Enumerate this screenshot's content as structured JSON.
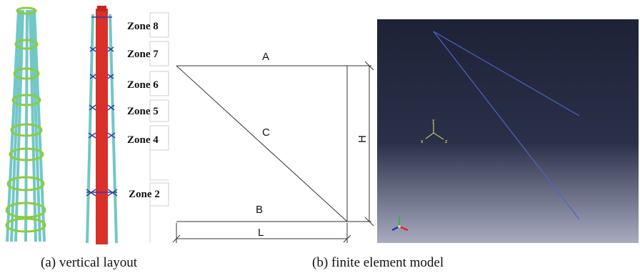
{
  "zones": [
    "Zone 8",
    "Zone 7",
    "Zone 6",
    "Zone 5",
    "Zone 4",
    "Zone 2"
  ],
  "truss": {
    "top_label": "A",
    "diagonal_label": "C",
    "bottom_label": "B",
    "height_label": "H",
    "length_label": "L"
  },
  "viewport": {
    "axis_y": "y",
    "axis_x": "x",
    "axis_z": "z"
  },
  "captions": {
    "left": "(a) vertical layout",
    "right": "(b) finite element model"
  },
  "colors": {
    "tower_leg": "#72c7c7",
    "ring": "#8dcc3a",
    "chimney": "#d9302a",
    "bracing": "#2f3fa8",
    "viewport_top": "#1d2236",
    "viewport_bottom": "#a8abc0",
    "fe_line": "#4d64c6"
  }
}
